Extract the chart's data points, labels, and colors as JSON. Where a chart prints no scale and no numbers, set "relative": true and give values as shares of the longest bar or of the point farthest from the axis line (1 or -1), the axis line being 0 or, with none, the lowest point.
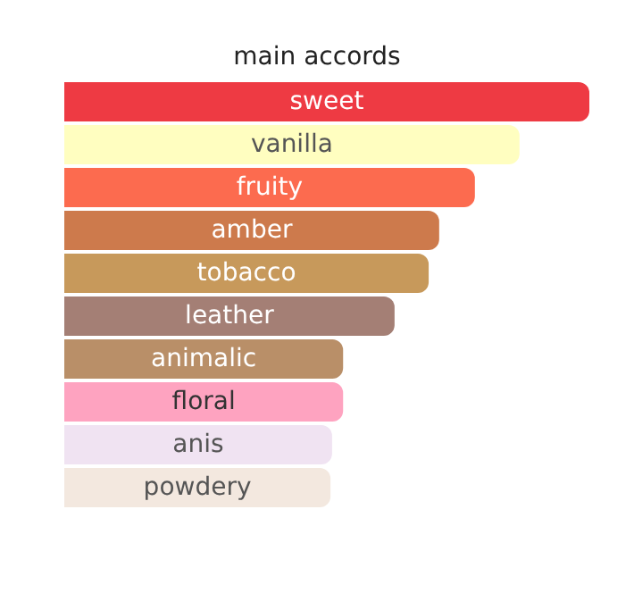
{
  "chart_data": {
    "type": "bar",
    "title": "main accords",
    "orientation": "horizontal",
    "relative": true,
    "categories": [
      "sweet",
      "vanilla",
      "fruity",
      "amber",
      "tobacco",
      "leather",
      "animalic",
      "floral",
      "anis",
      "powdery"
    ],
    "values": [
      1,
      0.867,
      0.782,
      0.714,
      0.694,
      0.629,
      0.531,
      0.531,
      0.51,
      0.507
    ],
    "colors": [
      "#ee3a43",
      "#fffec0",
      "#fc6b4f",
      "#cd7a4c",
      "#c7995b",
      "#a47f75",
      "#b98f68",
      "#fea3c0",
      "#f0e3f2",
      "#f3e8df"
    ]
  }
}
